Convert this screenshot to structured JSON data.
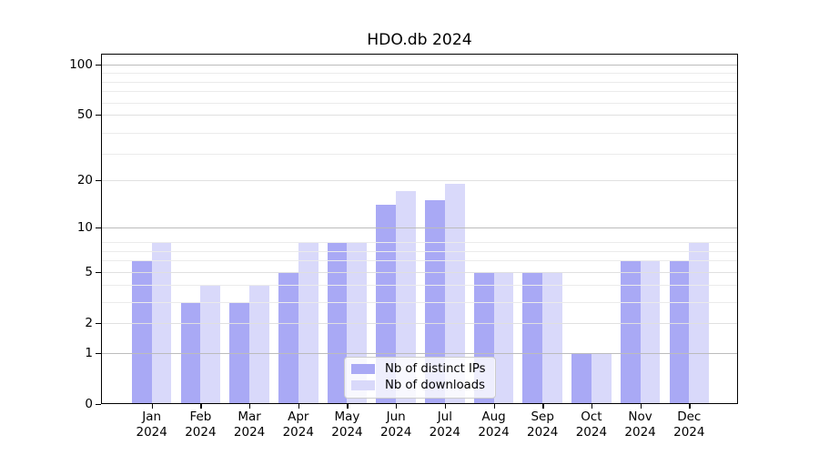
{
  "chart_data": {
    "type": "bar",
    "title": "HDO.db 2024",
    "categories": [
      "Jan",
      "Feb",
      "Mar",
      "Apr",
      "May",
      "Jun",
      "Jul",
      "Aug",
      "Sep",
      "Oct",
      "Nov",
      "Dec"
    ],
    "year_label": "2024",
    "series": [
      {
        "name": "Nb of distinct IPs",
        "color": "#a9a9f5",
        "values": [
          6,
          3,
          3,
          5,
          8,
          14,
          15,
          5,
          5,
          1,
          6,
          6
        ]
      },
      {
        "name": "Nb of downloads",
        "color": "#d9d9fa",
        "values": [
          8,
          4,
          4,
          8,
          8,
          17,
          19,
          5,
          5,
          1,
          6,
          8
        ]
      }
    ],
    "yscale": "log1p",
    "ylim": [
      0,
      115
    ],
    "yticks": [
      0,
      1,
      2,
      5,
      10,
      20,
      50,
      100
    ],
    "yticks_decade": [
      1,
      10,
      100
    ],
    "yticks_minor": [
      3,
      4,
      6,
      7,
      8,
      29,
      39,
      59,
      69,
      79,
      89
    ],
    "xlabel": "",
    "ylabel": "",
    "grid": true,
    "legend_position": "lower center",
    "colors": {
      "grid_major": "#bcbcbc",
      "grid_mid": "#e0e0e0",
      "grid_minor": "#ebebeb",
      "axis": "#000000"
    }
  }
}
